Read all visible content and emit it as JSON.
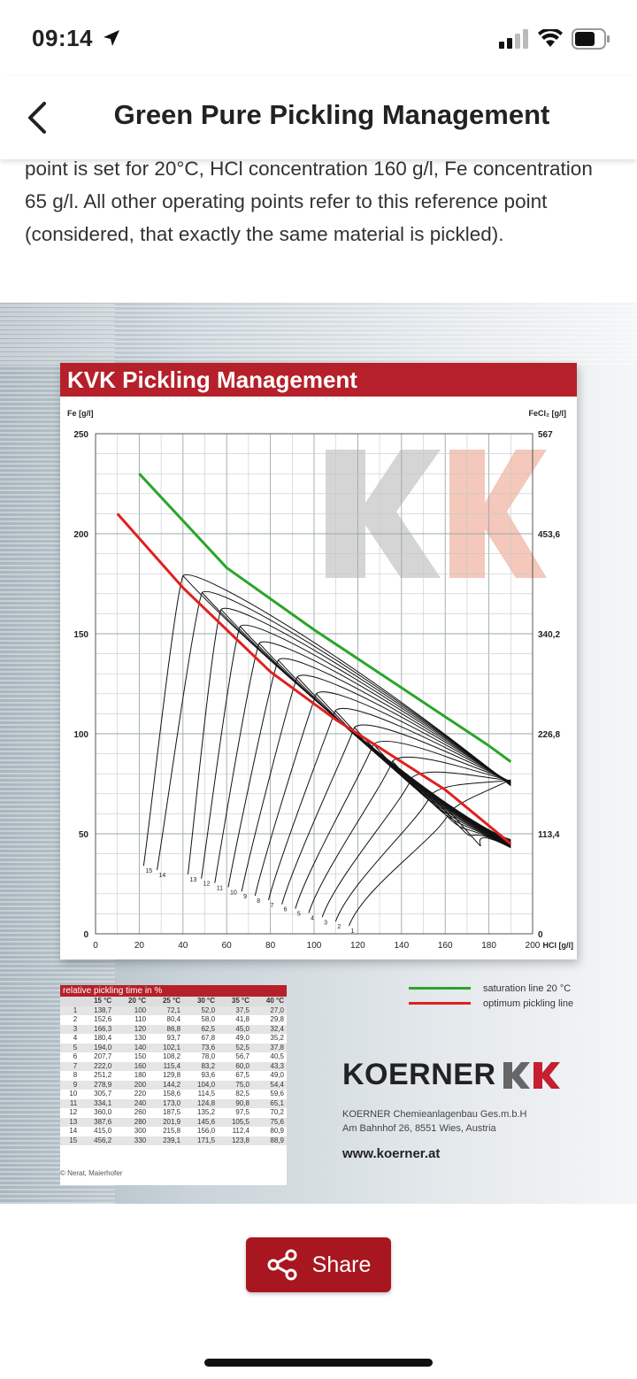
{
  "status": {
    "time": "09:14"
  },
  "nav": {
    "title": "Green Pure Pickling Management"
  },
  "paragraph": "point is set for 20°C, HCl concentration 160 g/l, Fe concentration 65 g/l. All other operating points refer to this reference point (considered, that exactly the same material is pickled).",
  "chart_data": {
    "type": "line",
    "title": "KVK Pickling Management",
    "ylabel_left": "Fe [g/l]",
    "ylabel_right": "FeCl₂ [g/l]",
    "xlabel": "HCl [g/l]",
    "x_ticks": [
      "0",
      "20",
      "40",
      "60",
      "80",
      "100",
      "120",
      "140",
      "160",
      "180",
      "200"
    ],
    "y_ticks_left": [
      "0",
      "50",
      "100",
      "150",
      "200",
      "250"
    ],
    "y_ticks_right": [
      "0",
      "113,4",
      "226,8",
      "340,2",
      "453,6",
      "567"
    ],
    "xlim": [
      0,
      200
    ],
    "ylim": [
      0,
      250
    ],
    "grid": true,
    "series": [
      {
        "name": "saturation line 20 °C",
        "color": "#2aa52a",
        "x": [
          20,
          60,
          100,
          140,
          180,
          190
        ],
        "y": [
          230,
          183,
          152,
          123,
          94,
          86
        ]
      },
      {
        "name": "optimum pickling line",
        "color": "#e02020",
        "x": [
          10,
          40,
          80,
          110,
          160,
          190
        ],
        "y": [
          210,
          173,
          131,
          107,
          72,
          45
        ]
      }
    ],
    "curve_labels": [
      "1",
      "2",
      "3",
      "4",
      "5",
      "6",
      "7",
      "8",
      "9",
      "10",
      "11",
      "12",
      "13",
      "14",
      "15"
    ]
  },
  "table": {
    "title": "relative pickling time in %",
    "headers": [
      "",
      "15 °C",
      "20 °C",
      "25 °C",
      "30 °C",
      "35 °C",
      "40 °C"
    ],
    "rows": [
      [
        "1",
        "138,7",
        "100",
        "72,1",
        "52,0",
        "37,5",
        "27,0"
      ],
      [
        "2",
        "152,6",
        "110",
        "80,4",
        "58,0",
        "41,8",
        "29,8"
      ],
      [
        "3",
        "166,3",
        "120",
        "86,8",
        "62,5",
        "45,0",
        "32,4"
      ],
      [
        "4",
        "180,4",
        "130",
        "93,7",
        "67,8",
        "49,0",
        "35,2"
      ],
      [
        "5",
        "194,0",
        "140",
        "102,1",
        "73,6",
        "52,5",
        "37,8"
      ],
      [
        "6",
        "207,7",
        "150",
        "108,2",
        "78,0",
        "56,7",
        "40,5"
      ],
      [
        "7",
        "222,0",
        "160",
        "115,4",
        "83,2",
        "60,0",
        "43,3"
      ],
      [
        "8",
        "251,2",
        "180",
        "129,8",
        "93,6",
        "67,5",
        "49,0"
      ],
      [
        "9",
        "278,9",
        "200",
        "144,2",
        "104,0",
        "75,0",
        "54,4"
      ],
      [
        "10",
        "305,7",
        "220",
        "158,6",
        "114,5",
        "82,5",
        "59,6"
      ],
      [
        "11",
        "334,1",
        "240",
        "173,0",
        "124,8",
        "90,8",
        "65,1"
      ],
      [
        "12",
        "360,0",
        "260",
        "187,5",
        "135,2",
        "97,5",
        "70,2"
      ],
      [
        "13",
        "387,6",
        "280",
        "201,9",
        "145,6",
        "105,5",
        "75,6"
      ],
      [
        "14",
        "415,0",
        "300",
        "215,8",
        "156,0",
        "112,4",
        "80,9"
      ],
      [
        "15",
        "456,2",
        "330",
        "239,1",
        "171,5",
        "123,8",
        "88,9"
      ]
    ]
  },
  "legend": {
    "saturation": "saturation line 20 °C",
    "optimum": "optimum pickling line"
  },
  "brand": {
    "name": "KOERNER",
    "company": "KOERNER Chemieanlagenbau Ges.m.b.H",
    "address": "Am Bahnhof 26, 8551 Wies, Austria",
    "website": "www.koerner.at"
  },
  "credit": "© Nerat, Maierhofer",
  "share": {
    "label": "Share"
  }
}
